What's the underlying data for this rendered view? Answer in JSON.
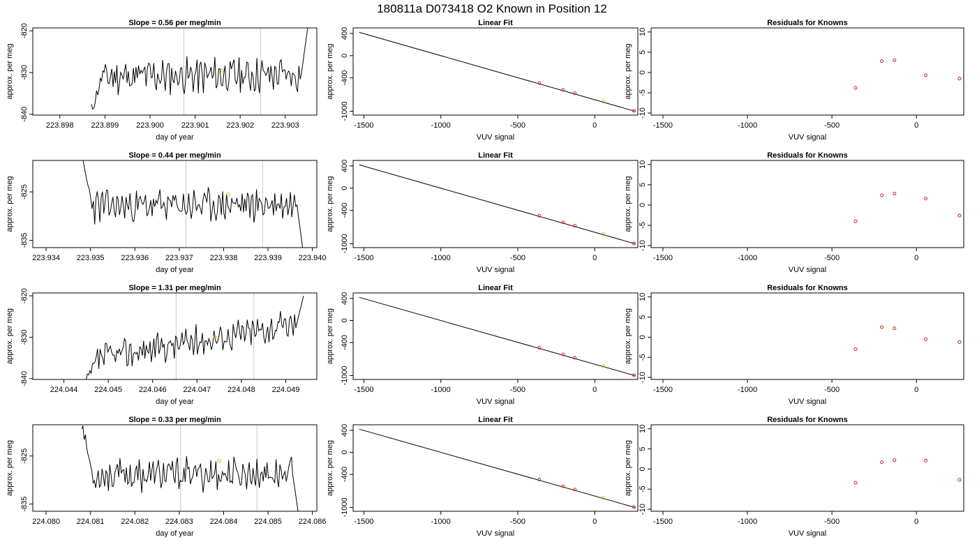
{
  "header": {
    "title": "180811a     D073418   O2 Known in Position  12"
  },
  "chart_data": [
    {
      "type": "line",
      "title": "Slope =  0.56  per meg/min",
      "xlabel": "day of year",
      "ylabel": "approx. per meg",
      "xlim": [
        223.8974,
        223.9037
      ],
      "ylim": [
        -840.2,
        -819.3
      ],
      "xticks": [
        "223.898",
        "223.899",
        "223.900",
        "223.901",
        "223.902",
        "223.903"
      ],
      "yticks": [
        "-820",
        "-830",
        "-840"
      ],
      "ytick_values": [
        -820,
        -830,
        -840
      ],
      "vlines": [
        223.90075,
        223.90245
      ],
      "marker": {
        "x": 223.9016,
        "y": -829.5
      },
      "series": [
        {
          "start": 223.8987,
          "end": 223.9035,
          "first_y": -839.0,
          "last_y": -819.0,
          "base": -831.0,
          "amplitude": 3.5,
          "trend": 0.55,
          "seed": 11
        }
      ],
      "colors": {
        "line": "#000000",
        "marker": "#f5a623",
        "vline": "#c8c8c8"
      }
    },
    {
      "type": "scatter",
      "title": "Linear Fit",
      "xlabel": "VUV signal",
      "ylabel": "approx. per meg",
      "xlim": [
        -1570,
        280
      ],
      "ylim": [
        -1070,
        500
      ],
      "xticks": [
        "-1500",
        "-1000",
        "-500",
        "0"
      ],
      "xtick_values": [
        -1500,
        -1000,
        -500,
        0
      ],
      "yticks": [
        "400",
        "0",
        "-400",
        "-1000"
      ],
      "ytick_values": [
        400,
        0,
        -400,
        -1000
      ],
      "fit_line": {
        "x": [
          -1530,
          260
        ],
        "y": [
          420,
          -1000
        ]
      },
      "points": [
        {
          "x": -360,
          "y": -494
        },
        {
          "x": -205,
          "y": -616
        },
        {
          "x": -130,
          "y": -676
        },
        {
          "x": 55,
          "y": -826,
          "highlight": true
        },
        {
          "x": 255,
          "y": -994
        }
      ],
      "colors": {
        "line": "#000000",
        "point": "#cc2222",
        "highlight": "#f5a623"
      }
    },
    {
      "type": "scatter",
      "title": "Residuals for Knowns",
      "xlabel": "VUV signal",
      "ylabel": "approx. per meg",
      "xlim": [
        -1570,
        280
      ],
      "ylim": [
        -10.5,
        11
      ],
      "xticks": [
        "-1500",
        "-1000",
        "-500",
        "0"
      ],
      "xtick_values": [
        -1500,
        -1000,
        -500,
        0
      ],
      "yticks": [
        "10",
        "5",
        "0",
        "-5",
        "-10"
      ],
      "ytick_values": [
        10,
        5,
        0,
        -5,
        -10
      ],
      "points": [
        {
          "x": -360,
          "y": -3.8
        },
        {
          "x": -205,
          "y": 2.8
        },
        {
          "x": -130,
          "y": 3.0
        },
        {
          "x": 55,
          "y": -0.7
        },
        {
          "x": 255,
          "y": -1.5
        }
      ],
      "colors": {
        "point": "#cc2222"
      }
    },
    {
      "type": "line",
      "title": "Slope =  0.44  per meg/min",
      "xlabel": "day of year",
      "ylabel": "approx. per meg",
      "xlim": [
        223.9337,
        223.9401
      ],
      "ylim": [
        -836.5,
        -818.5
      ],
      "xticks": [
        "223.934",
        "223.935",
        "223.936",
        "223.937",
        "223.938",
        "223.939",
        "223.940"
      ],
      "yticks": [
        "-825",
        "-835"
      ],
      "ytick_values": [
        -825,
        -835
      ],
      "vlines": [
        223.93715,
        223.93888
      ],
      "marker": {
        "x": 223.9381,
        "y": -825.5
      },
      "series": [
        {
          "start": 223.9348,
          "end": 223.9398,
          "first_y": -818.0,
          "last_y": -838.0,
          "base": -828.0,
          "amplitude": 2.8,
          "trend": 0.5,
          "seed": 23
        }
      ],
      "colors": {
        "line": "#000000",
        "marker": "#f5a623",
        "vline": "#c8c8c8"
      }
    },
    {
      "type": "scatter",
      "title": "Linear Fit",
      "xlabel": "VUV signal",
      "ylabel": "approx. per meg",
      "xlim": [
        -1570,
        280
      ],
      "ylim": [
        -1070,
        500
      ],
      "xticks": [
        "-1500",
        "-1000",
        "-500",
        "0"
      ],
      "xtick_values": [
        -1500,
        -1000,
        -500,
        0
      ],
      "yticks": [
        "400",
        "0",
        "-400",
        "-1000"
      ],
      "ytick_values": [
        400,
        0,
        -400,
        -1000
      ],
      "fit_line": {
        "x": [
          -1530,
          260
        ],
        "y": [
          420,
          -1000
        ]
      },
      "points": [
        {
          "x": -360,
          "y": -494
        },
        {
          "x": -205,
          "y": -616
        },
        {
          "x": -130,
          "y": -676
        },
        {
          "x": 55,
          "y": -826,
          "highlight": true
        },
        {
          "x": 255,
          "y": -994
        }
      ],
      "colors": {
        "line": "#000000",
        "point": "#cc2222",
        "highlight": "#f5a623"
      }
    },
    {
      "type": "scatter",
      "title": "Residuals for Knowns",
      "xlabel": "VUV signal",
      "ylabel": "approx. per meg",
      "xlim": [
        -1570,
        280
      ],
      "ylim": [
        -10.5,
        11
      ],
      "xticks": [
        "-1500",
        "-1000",
        "-500",
        "0"
      ],
      "xtick_values": [
        -1500,
        -1000,
        -500,
        0
      ],
      "yticks": [
        "10",
        "5",
        "0",
        "-5",
        "-10"
      ],
      "ytick_values": [
        10,
        5,
        0,
        -5,
        -10
      ],
      "points": [
        {
          "x": -360,
          "y": -4.0
        },
        {
          "x": -205,
          "y": 2.4
        },
        {
          "x": -130,
          "y": 2.8
        },
        {
          "x": 55,
          "y": 1.6
        },
        {
          "x": 255,
          "y": -2.6
        }
      ],
      "colors": {
        "point": "#cc2222"
      }
    },
    {
      "type": "line",
      "title": "Slope =  1.31  per meg/min",
      "xlabel": "day of year",
      "ylabel": "approx. per meg",
      "xlim": [
        224.0433,
        224.0497
      ],
      "ylim": [
        -840.2,
        -819.3
      ],
      "xticks": [
        "224.044",
        "224.045",
        "224.046",
        "224.047",
        "224.048",
        "224.049"
      ],
      "yticks": [
        "-820",
        "-830",
        "-840"
      ],
      "ytick_values": [
        -820,
        -830,
        -840
      ],
      "vlines": [
        224.04653,
        224.04828
      ],
      "marker": {
        "x": 224.0474,
        "y": -830.0
      },
      "series": [
        {
          "start": 224.0445,
          "end": 224.0494,
          "first_y": -841.0,
          "last_y": -820.0,
          "base": -835.5,
          "amplitude": 3.0,
          "trend": 9.0,
          "seed": 37
        }
      ],
      "colors": {
        "line": "#000000",
        "marker": "#f5a623",
        "vline": "#c8c8c8"
      }
    },
    {
      "type": "scatter",
      "title": "Linear Fit",
      "xlabel": "VUV signal",
      "ylabel": "approx. per meg",
      "xlim": [
        -1570,
        280
      ],
      "ylim": [
        -1070,
        500
      ],
      "xticks": [
        "-1500",
        "-1000",
        "-500",
        "0"
      ],
      "xtick_values": [
        -1500,
        -1000,
        -500,
        0
      ],
      "yticks": [
        "400",
        "0",
        "-400",
        "-1000"
      ],
      "ytick_values": [
        400,
        0,
        -400,
        -1000
      ],
      "fit_line": {
        "x": [
          -1530,
          260
        ],
        "y": [
          420,
          -1000
        ]
      },
      "points": [
        {
          "x": -360,
          "y": -494
        },
        {
          "x": -205,
          "y": -616
        },
        {
          "x": -130,
          "y": -676
        },
        {
          "x": 55,
          "y": -826,
          "highlight": true
        },
        {
          "x": 255,
          "y": -994
        }
      ],
      "colors": {
        "line": "#000000",
        "point": "#cc2222",
        "highlight": "#f5a623"
      }
    },
    {
      "type": "scatter",
      "title": "Residuals for Knowns",
      "xlabel": "VUV signal",
      "ylabel": "approx. per meg",
      "xlim": [
        -1570,
        280
      ],
      "ylim": [
        -10.5,
        11
      ],
      "xticks": [
        "-1500",
        "-1000",
        "-500",
        "0"
      ],
      "xtick_values": [
        -1500,
        -1000,
        -500,
        0
      ],
      "yticks": [
        "10",
        "5",
        "0",
        "-5",
        "-10"
      ],
      "ytick_values": [
        10,
        5,
        0,
        -5,
        -10
      ],
      "points": [
        {
          "x": -360,
          "y": -3.0
        },
        {
          "x": -205,
          "y": 2.5
        },
        {
          "x": -130,
          "y": 2.2
        },
        {
          "x": 55,
          "y": -0.5
        },
        {
          "x": 255,
          "y": -1.2
        }
      ],
      "colors": {
        "point": "#cc2222"
      }
    },
    {
      "type": "line",
      "title": "Slope =  0.33  per meg/min",
      "xlabel": "day of year",
      "ylabel": "approx. per meg",
      "xlim": [
        224.0797,
        224.0861
      ],
      "ylim": [
        -836.5,
        -818.5
      ],
      "xticks": [
        "224.080",
        "224.081",
        "224.082",
        "224.083",
        "224.084",
        "224.085",
        "224.086"
      ],
      "yticks": [
        "-825",
        "-835"
      ],
      "ytick_values": [
        -825,
        -835
      ],
      "vlines": [
        224.08303,
        224.08475
      ],
      "marker": {
        "x": 224.0839,
        "y": -826.0
      },
      "series": [
        {
          "start": 224.0808,
          "end": 224.0857,
          "first_y": -818.0,
          "last_y": -838.0,
          "base": -829.0,
          "amplitude": 2.8,
          "trend": 0.4,
          "seed": 53
        }
      ],
      "colors": {
        "line": "#000000",
        "marker": "#f5a623",
        "vline": "#c8c8c8"
      }
    },
    {
      "type": "scatter",
      "title": "Linear Fit",
      "xlabel": "VUV signal",
      "ylabel": "approx. per meg",
      "xlim": [
        -1570,
        280
      ],
      "ylim": [
        -1070,
        500
      ],
      "xticks": [
        "-1500",
        "-1000",
        "-500",
        "0"
      ],
      "xtick_values": [
        -1500,
        -1000,
        -500,
        0
      ],
      "yticks": [
        "400",
        "0",
        "-400",
        "-1000"
      ],
      "ytick_values": [
        400,
        0,
        -400,
        -1000
      ],
      "fit_line": {
        "x": [
          -1530,
          260
        ],
        "y": [
          420,
          -1000
        ]
      },
      "points": [
        {
          "x": -360,
          "y": -494
        },
        {
          "x": -205,
          "y": -616
        },
        {
          "x": -130,
          "y": -676
        },
        {
          "x": 55,
          "y": -826,
          "highlight": true
        },
        {
          "x": 255,
          "y": -994
        }
      ],
      "colors": {
        "line": "#000000",
        "point": "#cc2222",
        "highlight": "#f5a623"
      }
    },
    {
      "type": "scatter",
      "title": "Residuals for Knowns",
      "xlabel": "VUV signal",
      "ylabel": "approx. per meg",
      "xlim": [
        -1570,
        280
      ],
      "ylim": [
        -10.5,
        11
      ],
      "xticks": [
        "-1500",
        "-1000",
        "-500",
        "0"
      ],
      "xtick_values": [
        -1500,
        -1000,
        -500,
        0
      ],
      "yticks": [
        "10",
        "5",
        "0",
        "-5",
        "-10"
      ],
      "ytick_values": [
        10,
        5,
        0,
        -5,
        -10
      ],
      "points": [
        {
          "x": -360,
          "y": -3.4
        },
        {
          "x": -205,
          "y": 1.7
        },
        {
          "x": -130,
          "y": 2.2
        },
        {
          "x": 55,
          "y": 2.1
        },
        {
          "x": 255,
          "y": -2.7
        }
      ],
      "colors": {
        "point": "#cc2222"
      }
    }
  ]
}
